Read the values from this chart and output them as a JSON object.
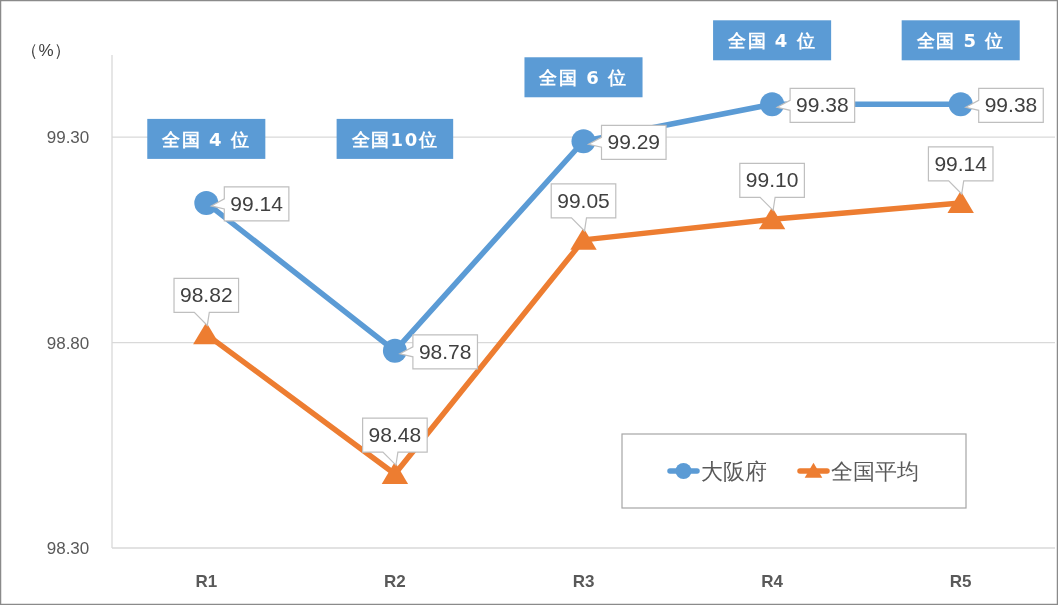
{
  "chart_data": {
    "type": "line",
    "ylabel": "（%）",
    "categories": [
      "R1",
      "R2",
      "R3",
      "R4",
      "R5"
    ],
    "series": [
      {
        "name": "大阪府",
        "color": "#5b9bd5",
        "marker": "circle",
        "values": [
          99.14,
          98.78,
          99.29,
          99.38,
          99.38
        ],
        "value_labels": [
          "99.14",
          "98.78",
          "99.29",
          "99.38",
          "99.38"
        ]
      },
      {
        "name": "全国平均",
        "color": "#ed7d31",
        "marker": "triangle",
        "values": [
          98.82,
          98.48,
          99.05,
          99.1,
          99.14
        ],
        "value_labels": [
          "98.82",
          "98.48",
          "99.05",
          "99.10",
          "99.14"
        ]
      }
    ],
    "ylim": [
      98.3,
      99.5
    ],
    "yticks": [
      {
        "value": 98.3,
        "label": "98.30"
      },
      {
        "value": 98.8,
        "label": "98.80"
      },
      {
        "value": 99.3,
        "label": "99.30"
      }
    ],
    "grid": "y",
    "legend": "bottom right",
    "annotations": [
      {
        "text": "全国 4 位",
        "x": "R1",
        "y": 99.14
      },
      "全国10位",
      {
        "text": "全国 6 位",
        "x": "R3",
        "y": 99.29
      },
      {
        "text": "全国 4 位",
        "x": "R4",
        "y": 99.38
      },
      {
        "text": "全国 5 位",
        "x": "R5",
        "y": 99.38
      }
    ]
  }
}
